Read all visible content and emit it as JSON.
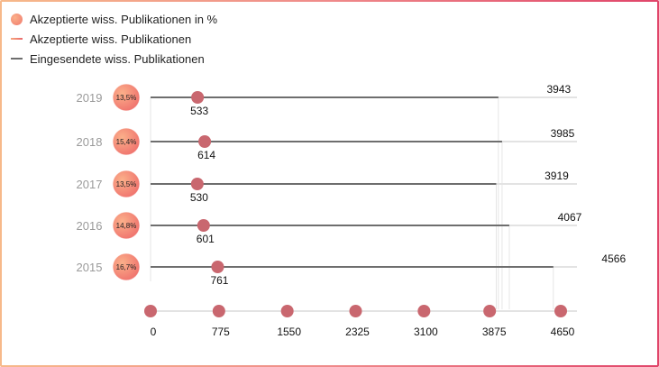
{
  "legend": {
    "percent_label": "Akzeptierte wiss. Publikationen in %",
    "accepted_label": "Akzeptierte wiss. Publikationen",
    "submitted_label": "Eingesendete wiss. Publikationen"
  },
  "colors": {
    "accepted_marker": "#c9676f",
    "submitted_line": "#6e6e6e",
    "track": "#e3e3e3",
    "gradient_start": "#f7b98a",
    "gradient_end": "#e0456a",
    "year_text": "#9a9a9a"
  },
  "chart_data": {
    "type": "lollipop",
    "xlim": [
      0,
      4650
    ],
    "x_ticks": [
      "0",
      "775",
      "1550",
      "2325",
      "3100",
      "3875",
      "4650"
    ],
    "x_tick_values": [
      0,
      775,
      1550,
      2325,
      3100,
      3875,
      4650
    ],
    "categories": [
      "2019",
      "2018",
      "2017",
      "2016",
      "2015"
    ],
    "series": [
      {
        "name": "Akzeptierte wiss. Publikationen",
        "values": [
          533,
          614,
          530,
          601,
          761
        ]
      },
      {
        "name": "Eingesendete wiss. Publikationen",
        "values": [
          3943,
          3985,
          3919,
          4067,
          4566
        ]
      },
      {
        "name": "Akzeptierte wiss. Publikationen in %",
        "values": [
          "13,5%",
          "15,4%",
          "13,5%",
          "14,8%",
          "16,7%"
        ]
      }
    ]
  }
}
